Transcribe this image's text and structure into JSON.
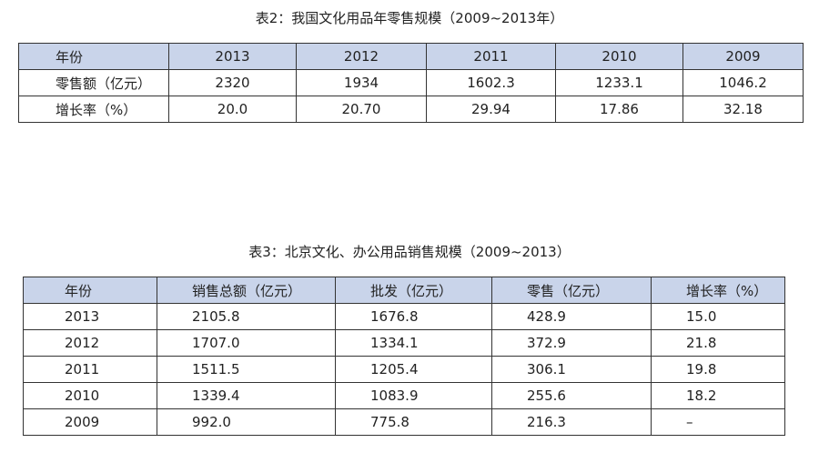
{
  "tables": [
    {
      "title": "表2：我国文化用品年零售规模（2009~2013年）",
      "header": [
        "年份",
        "2013",
        "2012",
        "2011",
        "2010",
        "2009"
      ],
      "rows": [
        [
          "零售额（亿元）",
          "2320",
          "1934",
          "1602.3",
          "1233.1",
          "1046.2"
        ],
        [
          "增长率（%）",
          "20.0",
          "20.70",
          "29.94",
          "17.86",
          "32.18"
        ]
      ]
    },
    {
      "title": "表3：北京文化、办公用品销售规模（2009~2013）",
      "header": [
        "年份",
        "销售总额（亿元）",
        "批发（亿元）",
        "零售（亿元）",
        "增长率（%）"
      ],
      "rows": [
        [
          "2013",
          "2105.8",
          "1676.8",
          "428.9",
          "15.0"
        ],
        [
          "2012",
          "1707.0",
          "1334.1",
          "372.9",
          "21.8"
        ],
        [
          "2011",
          "1511.5",
          "1205.4",
          "306.1",
          "19.8"
        ],
        [
          "2010",
          "1339.4",
          "1083.9",
          "255.6",
          "18.2"
        ],
        [
          "2009",
          "992.0",
          "775.8",
          "216.3",
          "–"
        ]
      ]
    }
  ]
}
